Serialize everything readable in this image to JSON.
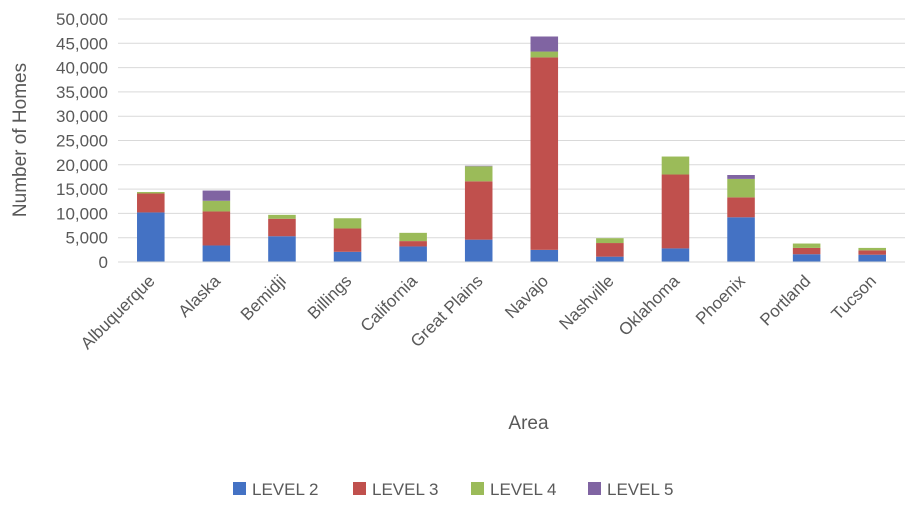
{
  "chart_data": {
    "type": "bar",
    "stacked": true,
    "title": "",
    "xlabel": "Area",
    "ylabel": "Number of Homes",
    "ylim": [
      0,
      50000
    ],
    "ytick_step": 5000,
    "yticks": [
      "0",
      "5,000",
      "10,000",
      "15,000",
      "20,000",
      "25,000",
      "30,000",
      "35,000",
      "40,000",
      "45,000",
      "50,000"
    ],
    "grid": true,
    "legend_position": "bottom",
    "categories": [
      "Albuquerque",
      "Alaska",
      "Bemidji",
      "Billings",
      "California",
      "Great Plains",
      "Navajo",
      "Nashville",
      "Oklahoma",
      "Phoenix",
      "Portland",
      "Tucson"
    ],
    "series": [
      {
        "name": "LEVEL 2",
        "color": "#4472C4",
        "values": [
          10200,
          3400,
          5300,
          2100,
          3200,
          4600,
          2500,
          1100,
          2800,
          9200,
          1600,
          1500
        ]
      },
      {
        "name": "LEVEL 3",
        "color": "#C0504D",
        "values": [
          3900,
          7000,
          3600,
          4800,
          1100,
          12000,
          39600,
          2800,
          15200,
          4100,
          1300,
          900
        ]
      },
      {
        "name": "LEVEL 4",
        "color": "#9BBB59",
        "values": [
          300,
          2200,
          800,
          2100,
          1700,
          3100,
          1200,
          1000,
          3700,
          3800,
          900,
          500
        ]
      },
      {
        "name": "LEVEL 5",
        "color": "#8064A2",
        "values": [
          0,
          2100,
          0,
          0,
          0,
          100,
          3100,
          0,
          0,
          800,
          0,
          0
        ]
      }
    ]
  }
}
